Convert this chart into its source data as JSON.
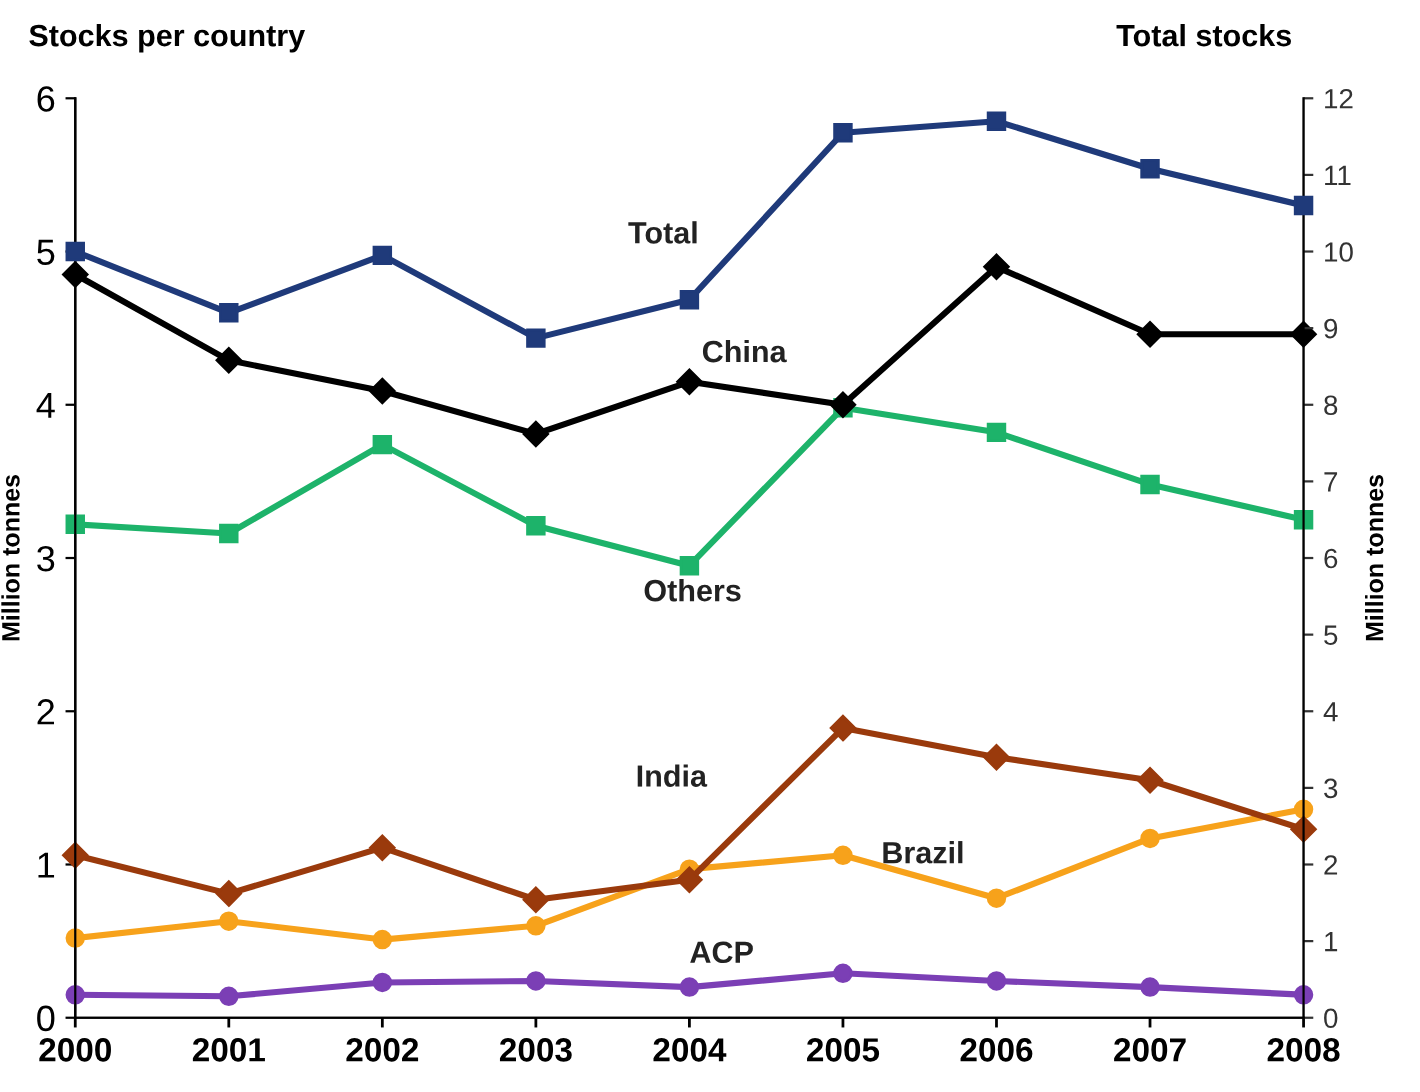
{
  "chart_data": {
    "type": "line",
    "title": "Stocks per country",
    "subtitle": "Total stocks",
    "ylabel": "Million tonnes",
    "y2label": "Million tonnes",
    "x": [
      2000,
      2001,
      2002,
      2003,
      2004,
      2005,
      2006,
      2007,
      2008
    ],
    "xlim": [
      2000,
      2008
    ],
    "xticks": [
      2000,
      2001,
      2002,
      2003,
      2004,
      2005,
      2006,
      2007,
      2008
    ],
    "ylim": [
      0,
      6
    ],
    "yticks": [
      0,
      1,
      2,
      3,
      4,
      5,
      6
    ],
    "y2lim": [
      0,
      12
    ],
    "y2ticks": [
      0,
      1,
      2,
      3,
      4,
      5,
      6,
      7,
      8,
      9,
      10,
      11,
      12
    ],
    "grid": false,
    "legend": false,
    "line_style": "solid",
    "series": [
      {
        "name": "Total",
        "color": "#1f3a7a",
        "axis": "y2",
        "marker": "square",
        "values": [
          10.0,
          9.2,
          9.95,
          8.87,
          9.37,
          11.55,
          11.7,
          11.08,
          10.6
        ]
      },
      {
        "name": "China",
        "color": "#000000",
        "marker": "diamond",
        "values": [
          4.85,
          4.29,
          4.09,
          3.81,
          4.15,
          4.0,
          4.9,
          4.46,
          4.46
        ]
      },
      {
        "name": "Others",
        "color": "#1db36a",
        "marker": "square",
        "values": [
          3.22,
          3.16,
          3.74,
          3.21,
          2.95,
          3.98,
          3.82,
          3.48,
          3.25
        ]
      },
      {
        "name": "India",
        "color": "#9a3a0c",
        "marker": "diamond",
        "values": [
          1.06,
          0.81,
          1.11,
          0.77,
          0.9,
          1.89,
          1.7,
          1.55,
          1.23
        ]
      },
      {
        "name": "Brazil",
        "color": "#f7a21b",
        "marker": "circle",
        "values": [
          0.52,
          0.63,
          0.51,
          0.6,
          0.97,
          1.06,
          0.78,
          1.17,
          1.36
        ]
      },
      {
        "name": "ACP",
        "color": "#7b3fb5",
        "marker": "circle",
        "values": [
          0.15,
          0.14,
          0.23,
          0.24,
          0.2,
          0.29,
          0.24,
          0.2,
          0.15
        ]
      }
    ]
  }
}
